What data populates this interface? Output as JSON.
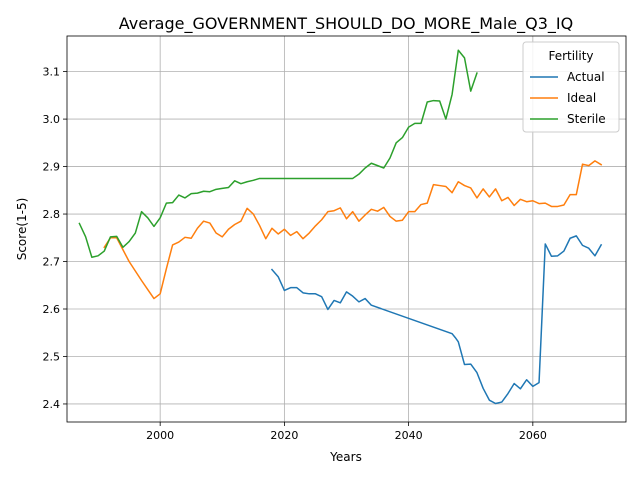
{
  "chart_data": {
    "type": "line",
    "title": "Average_GOVERNMENT_SHOULD_DO_MORE_Male_Q3_IQ",
    "xlabel": "Years",
    "ylabel": "Score(1-5)",
    "xlim": [
      1985,
      2075
    ],
    "ylim": [
      2.362,
      3.175
    ],
    "xticks": [
      2000,
      2020,
      2040,
      2060
    ],
    "yticks": [
      2.4,
      2.5,
      2.6,
      2.7,
      2.8,
      2.9,
      3.0,
      3.1
    ],
    "xtick_labels": [
      "2000",
      "2020",
      "2040",
      "2060"
    ],
    "ytick_labels": [
      "2.4",
      "2.5",
      "2.6",
      "2.7",
      "2.8",
      "2.9",
      "3.0",
      "3.1"
    ],
    "grid": true,
    "legend": {
      "title": "Fertility",
      "placement": "top-right"
    },
    "series": [
      {
        "name": "Actual",
        "color": "#1f77b4",
        "points": [
          [
            2018,
            2.683
          ],
          [
            2019,
            2.668
          ],
          [
            2020,
            2.639
          ],
          [
            2021,
            2.645
          ],
          [
            2022,
            2.645
          ],
          [
            2023,
            2.634
          ],
          [
            2024,
            2.632
          ],
          [
            2025,
            2.632
          ],
          [
            2026,
            2.626
          ],
          [
            2027,
            2.599
          ],
          [
            2028,
            2.618
          ],
          [
            2029,
            2.613
          ],
          [
            2030,
            2.636
          ],
          [
            2031,
            2.627
          ],
          [
            2032,
            2.615
          ],
          [
            2033,
            2.622
          ],
          [
            2034,
            2.608
          ],
          [
            2047,
            2.548
          ],
          [
            2047.5,
            2.54
          ],
          [
            2048,
            2.531
          ],
          [
            2048.5,
            2.507
          ],
          [
            2049,
            2.483
          ],
          [
            2050,
            2.484
          ],
          [
            2051,
            2.466
          ],
          [
            2052,
            2.433
          ],
          [
            2053,
            2.408
          ],
          [
            2054,
            2.401
          ],
          [
            2055,
            2.404
          ],
          [
            2056,
            2.422
          ],
          [
            2057,
            2.443
          ],
          [
            2058,
            2.432
          ],
          [
            2059,
            2.451
          ],
          [
            2060,
            2.437
          ],
          [
            2061,
            2.445
          ],
          [
            2062,
            2.737
          ],
          [
            2063,
            2.711
          ],
          [
            2064,
            2.712
          ],
          [
            2065,
            2.722
          ],
          [
            2066,
            2.749
          ],
          [
            2067,
            2.754
          ],
          [
            2068,
            2.734
          ],
          [
            2069,
            2.728
          ],
          [
            2070,
            2.712
          ],
          [
            2071,
            2.735
          ]
        ]
      },
      {
        "name": "Ideal",
        "color": "#ff7f0e",
        "points": [
          [
            1991,
            2.73
          ],
          [
            1992,
            2.75
          ],
          [
            1993,
            2.75
          ],
          [
            1994,
            2.725
          ],
          [
            1995,
            2.7
          ],
          [
            1996,
            2.68
          ],
          [
            1997,
            2.66
          ],
          [
            1998,
            2.641
          ],
          [
            1999,
            2.622
          ],
          [
            2000,
            2.632
          ],
          [
            2001,
            2.685
          ],
          [
            2002,
            2.735
          ],
          [
            2003,
            2.741
          ],
          [
            2004,
            2.751
          ],
          [
            2005,
            2.749
          ],
          [
            2006,
            2.77
          ],
          [
            2007,
            2.785
          ],
          [
            2008,
            2.781
          ],
          [
            2009,
            2.76
          ],
          [
            2010,
            2.752
          ],
          [
            2011,
            2.768
          ],
          [
            2012,
            2.778
          ],
          [
            2013,
            2.785
          ],
          [
            2014,
            2.812
          ],
          [
            2015,
            2.8
          ],
          [
            2016,
            2.776
          ],
          [
            2017,
            2.748
          ],
          [
            2018,
            2.77
          ],
          [
            2019,
            2.758
          ],
          [
            2020,
            2.768
          ],
          [
            2021,
            2.755
          ],
          [
            2022,
            2.763
          ],
          [
            2023,
            2.748
          ],
          [
            2024,
            2.76
          ],
          [
            2025,
            2.775
          ],
          [
            2026,
            2.788
          ],
          [
            2027,
            2.805
          ],
          [
            2028,
            2.807
          ],
          [
            2029,
            2.813
          ],
          [
            2030,
            2.79
          ],
          [
            2031,
            2.805
          ],
          [
            2032,
            2.785
          ],
          [
            2033,
            2.798
          ],
          [
            2034,
            2.81
          ],
          [
            2035,
            2.806
          ],
          [
            2036,
            2.814
          ],
          [
            2037,
            2.795
          ],
          [
            2038,
            2.785
          ],
          [
            2039,
            2.787
          ],
          [
            2040,
            2.805
          ],
          [
            2041,
            2.805
          ],
          [
            2042,
            2.82
          ],
          [
            2043,
            2.823
          ],
          [
            2044,
            2.862
          ],
          [
            2045,
            2.86
          ],
          [
            2046,
            2.858
          ],
          [
            2047,
            2.845
          ],
          [
            2048,
            2.868
          ],
          [
            2049,
            2.86
          ],
          [
            2050,
            2.855
          ],
          [
            2051,
            2.834
          ],
          [
            2052,
            2.853
          ],
          [
            2053,
            2.836
          ],
          [
            2054,
            2.853
          ],
          [
            2055,
            2.828
          ],
          [
            2056,
            2.835
          ],
          [
            2057,
            2.818
          ],
          [
            2058,
            2.831
          ],
          [
            2059,
            2.826
          ],
          [
            2060,
            2.828
          ],
          [
            2061,
            2.822
          ],
          [
            2062,
            2.823
          ],
          [
            2063,
            2.816
          ],
          [
            2064,
            2.816
          ],
          [
            2065,
            2.819
          ],
          [
            2066,
            2.841
          ],
          [
            2067,
            2.841
          ],
          [
            2068,
            2.905
          ],
          [
            2069,
            2.902
          ],
          [
            2070,
            2.912
          ],
          [
            2071,
            2.904
          ]
        ]
      },
      {
        "name": "Sterile",
        "color": "#2ca02c",
        "points": [
          [
            1987,
            2.78
          ],
          [
            1988,
            2.752
          ],
          [
            1989,
            2.709
          ],
          [
            1990,
            2.712
          ],
          [
            1991,
            2.722
          ],
          [
            1992,
            2.752
          ],
          [
            1993,
            2.753
          ],
          [
            1994,
            2.73
          ],
          [
            1995,
            2.742
          ],
          [
            1996,
            2.76
          ],
          [
            1997,
            2.805
          ],
          [
            1998,
            2.792
          ],
          [
            1999,
            2.774
          ],
          [
            2000,
            2.792
          ],
          [
            2001,
            2.823
          ],
          [
            2002,
            2.824
          ],
          [
            2003,
            2.84
          ],
          [
            2004,
            2.834
          ],
          [
            2005,
            2.843
          ],
          [
            2006,
            2.844
          ],
          [
            2007,
            2.848
          ],
          [
            2008,
            2.847
          ],
          [
            2009,
            2.852
          ],
          [
            2010,
            2.854
          ],
          [
            2011,
            2.856
          ],
          [
            2012,
            2.87
          ],
          [
            2013,
            2.864
          ],
          [
            2014,
            2.868
          ],
          [
            2015,
            2.871
          ],
          [
            2016,
            2.875
          ],
          [
            2020,
            2.875
          ],
          [
            2025,
            2.875
          ],
          [
            2030,
            2.875
          ],
          [
            2031,
            2.875
          ],
          [
            2032,
            2.884
          ],
          [
            2033,
            2.897
          ],
          [
            2034,
            2.907
          ],
          [
            2035,
            2.902
          ],
          [
            2036,
            2.897
          ],
          [
            2037,
            2.918
          ],
          [
            2038,
            2.95
          ],
          [
            2039,
            2.961
          ],
          [
            2040,
            2.983
          ],
          [
            2041,
            2.991
          ],
          [
            2042,
            2.991
          ],
          [
            2043,
            3.036
          ],
          [
            2044,
            3.039
          ],
          [
            2045,
            3.038
          ],
          [
            2046,
            3.0
          ],
          [
            2047,
            3.052
          ],
          [
            2048,
            3.145
          ],
          [
            2049,
            3.129
          ],
          [
            2050,
            3.059
          ],
          [
            2051,
            3.097
          ]
        ]
      }
    ]
  }
}
